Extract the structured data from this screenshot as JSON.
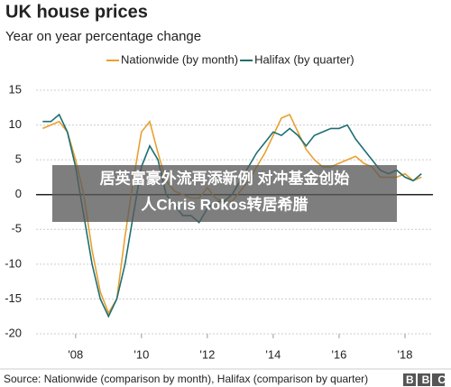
{
  "chart_data": {
    "type": "line",
    "title": "UK house prices",
    "subtitle": "Year on year percentage change",
    "x": [
      2007.0,
      2007.25,
      2007.5,
      2007.75,
      2008.0,
      2008.25,
      2008.5,
      2008.75,
      2009.0,
      2009.25,
      2009.5,
      2009.75,
      2010.0,
      2010.25,
      2010.5,
      2010.75,
      2011.0,
      2011.25,
      2011.5,
      2011.75,
      2012.0,
      2012.25,
      2012.5,
      2012.75,
      2013.0,
      2013.25,
      2013.5,
      2013.75,
      2014.0,
      2014.25,
      2014.5,
      2014.75,
      2015.0,
      2015.25,
      2015.5,
      2015.75,
      2016.0,
      2016.25,
      2016.5,
      2016.75,
      2017.0,
      2017.25,
      2017.5,
      2017.75,
      2018.0,
      2018.25,
      2018.5
    ],
    "series": [
      {
        "name": "Nationwide (by month)",
        "color": "#e8a030",
        "values": [
          9.5,
          10,
          10.5,
          9,
          5,
          0,
          -8,
          -14,
          -17,
          -15,
          -6,
          2,
          9,
          10.5,
          6,
          2,
          0.5,
          0,
          -0.5,
          -0.5,
          1,
          -0.5,
          -1,
          -1,
          0.5,
          2,
          4,
          6,
          8.5,
          11,
          11.5,
          9,
          6.5,
          5,
          4,
          4,
          4.5,
          5,
          5.5,
          4.5,
          4,
          2.5,
          2.5,
          2.5,
          3,
          2,
          2.5
        ]
      },
      {
        "name": "Halifax (by quarter)",
        "color": "#1d6f73",
        "values": [
          10.5,
          10.5,
          11.5,
          9,
          4,
          -3,
          -10,
          -15,
          -17.5,
          -15,
          -10,
          -3,
          4,
          7,
          5,
          0,
          -1.5,
          -3,
          -3,
          -4,
          -2,
          -1,
          -1,
          0,
          2,
          4,
          6,
          7.5,
          9,
          8.5,
          9.5,
          8.5,
          7,
          8.5,
          9,
          9.5,
          9.5,
          10,
          8,
          6.5,
          5,
          3.5,
          3,
          3.5,
          2.5,
          2,
          3
        ]
      }
    ],
    "xlim": [
      2006.8,
      2018.85
    ],
    "xticks": [
      {
        "value": 2008,
        "label": "'08"
      },
      {
        "value": 2010,
        "label": "'10"
      },
      {
        "value": 2012,
        "label": "'12"
      },
      {
        "value": 2014,
        "label": "'14"
      },
      {
        "value": 2016,
        "label": "'16"
      },
      {
        "value": 2018,
        "label": "'18"
      }
    ],
    "ylim": [
      -20,
      15
    ],
    "yticks": [
      -20,
      -15,
      -10,
      -5,
      0,
      5,
      10,
      15
    ],
    "grid": true,
    "source": "Source: Nationwide (comparison by month), Halifax (comparison by quarter)",
    "logo": "BBC"
  },
  "overlay": {
    "lines": [
      "居英富豪外流再添新例 对冲基金创始",
      "人Chris Rokos转居希腊"
    ]
  }
}
